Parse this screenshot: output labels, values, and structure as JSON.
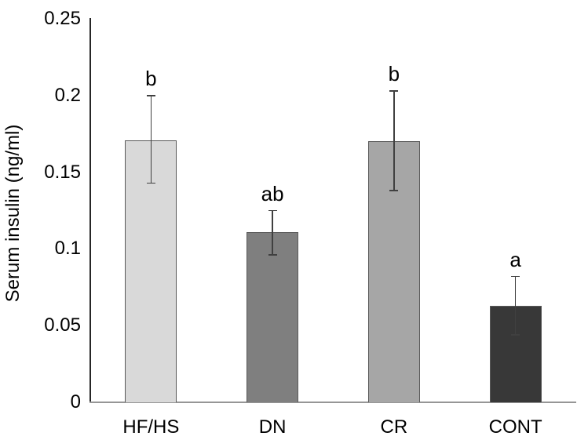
{
  "chart_data": {
    "type": "bar",
    "title": "",
    "xlabel": "",
    "ylabel": "Serum insulin (ng/ml)",
    "categories": [
      "HF/HS",
      "DN",
      "CR",
      "CONT"
    ],
    "values": [
      0.171,
      0.111,
      0.17,
      0.063
    ],
    "error_bar_top": [
      0.2,
      0.125,
      0.203,
      0.082
    ],
    "error_bar_bottom": [
      0.143,
      0.096,
      0.138,
      0.044
    ],
    "sig_letters": [
      "b",
      "ab",
      "b",
      "a"
    ],
    "ylim": [
      0,
      0.25
    ],
    "ytick_values": [
      0,
      0.05,
      0.1,
      0.15,
      0.2,
      0.25
    ],
    "ytick_labels": [
      "0",
      "0.05",
      "0.1",
      "0.15",
      "0.2",
      "0.25"
    ],
    "grid": "off",
    "legend": "none",
    "colors": {
      "bar_fills": [
        "#d9d9d9",
        "#7f7f7f",
        "#a6a6a6",
        "#383838"
      ],
      "bar_border": "#595959",
      "error_bar": "#404040",
      "y_axis_line": "#262626",
      "x_axis_line": "#969696",
      "text": "#000000",
      "background": "#ffffff"
    }
  }
}
